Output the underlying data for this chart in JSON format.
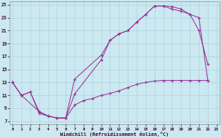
{
  "xlabel": "Windchill (Refroidissement éolien,°C)",
  "background_color": "#cce8f0",
  "grid_color": "#aad0dc",
  "line_color": "#993399",
  "x_ticks": [
    0,
    1,
    2,
    3,
    4,
    5,
    6,
    7,
    8,
    9,
    10,
    11,
    12,
    13,
    14,
    15,
    16,
    17,
    18,
    19,
    20,
    21,
    22,
    23
  ],
  "y_ticks": [
    7,
    9,
    11,
    13,
    15,
    17,
    19,
    21,
    23,
    25
  ],
  "xlim": [
    -0.3,
    23.3
  ],
  "ylim": [
    6.5,
    25.5
  ],
  "line1_x": [
    0,
    1,
    2,
    3,
    4,
    5,
    6,
    7,
    10,
    11,
    12,
    13,
    14,
    15,
    16,
    17,
    18,
    19,
    20,
    21,
    22
  ],
  "line1_y": [
    13,
    11,
    11.5,
    8.2,
    7.8,
    7.5,
    7.5,
    11.2,
    16.5,
    19.5,
    20.5,
    21.0,
    22.3,
    23.5,
    24.8,
    24.8,
    24.7,
    24.3,
    23.5,
    21.0,
    15.8
  ],
  "line2_x": [
    0,
    1,
    2,
    3,
    4,
    5,
    6,
    7,
    10,
    11,
    12,
    13,
    14,
    15,
    16,
    17,
    18,
    19,
    20,
    21,
    22
  ],
  "line2_y": [
    13,
    11,
    11.5,
    8.5,
    7.8,
    7.5,
    7.5,
    13.5,
    17.2,
    19.5,
    20.5,
    21.0,
    22.3,
    23.5,
    24.8,
    24.8,
    24.3,
    24.0,
    23.5,
    23.0,
    13.3
  ],
  "line3_x": [
    0,
    1,
    3,
    4,
    5,
    6,
    7,
    8,
    9,
    10,
    11,
    12,
    13,
    14,
    15,
    16,
    17,
    18,
    19,
    20,
    21,
    22
  ],
  "line3_y": [
    13,
    11,
    8.5,
    7.8,
    7.5,
    7.5,
    9.5,
    10.2,
    10.5,
    11.0,
    11.3,
    11.7,
    12.2,
    12.7,
    13.0,
    13.2,
    13.3,
    13.3,
    13.3,
    13.3,
    13.3,
    13.3
  ]
}
